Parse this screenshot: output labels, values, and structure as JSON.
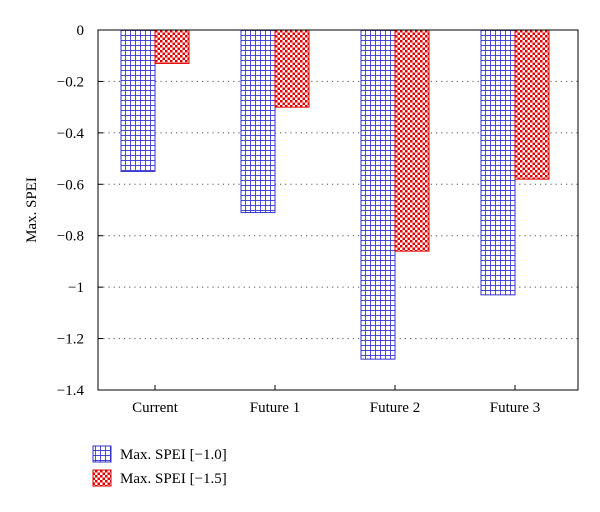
{
  "chart_data": {
    "type": "bar",
    "title": "",
    "xlabel": "",
    "ylabel": "Max. SPEI",
    "categories": [
      "Current",
      "Future 1",
      "Future 2",
      "Future 3"
    ],
    "ylim": [
      -1.4,
      0
    ],
    "yticks": [
      0,
      -0.2,
      -0.4,
      -0.6,
      -0.8,
      -1,
      -1.2,
      -1.4
    ],
    "ytick_labels": [
      "0",
      "-0.2",
      "-0.4",
      "-0.6",
      "-0.8",
      "-1",
      "-1.2",
      "-1.4"
    ],
    "grid": "horizontal dotted",
    "legend_position": "bottom-left",
    "series": [
      {
        "name": "Max. SPEI [−1.0]",
        "values": [
          -0.55,
          -0.71,
          -1.28,
          -1.03
        ],
        "color": "#3333cc",
        "pattern": "grid"
      },
      {
        "name": "Max. SPEI [−1.5]",
        "values": [
          -0.13,
          -0.3,
          -0.86,
          -0.58
        ],
        "color": "#e00000",
        "pattern": "checker"
      }
    ]
  }
}
